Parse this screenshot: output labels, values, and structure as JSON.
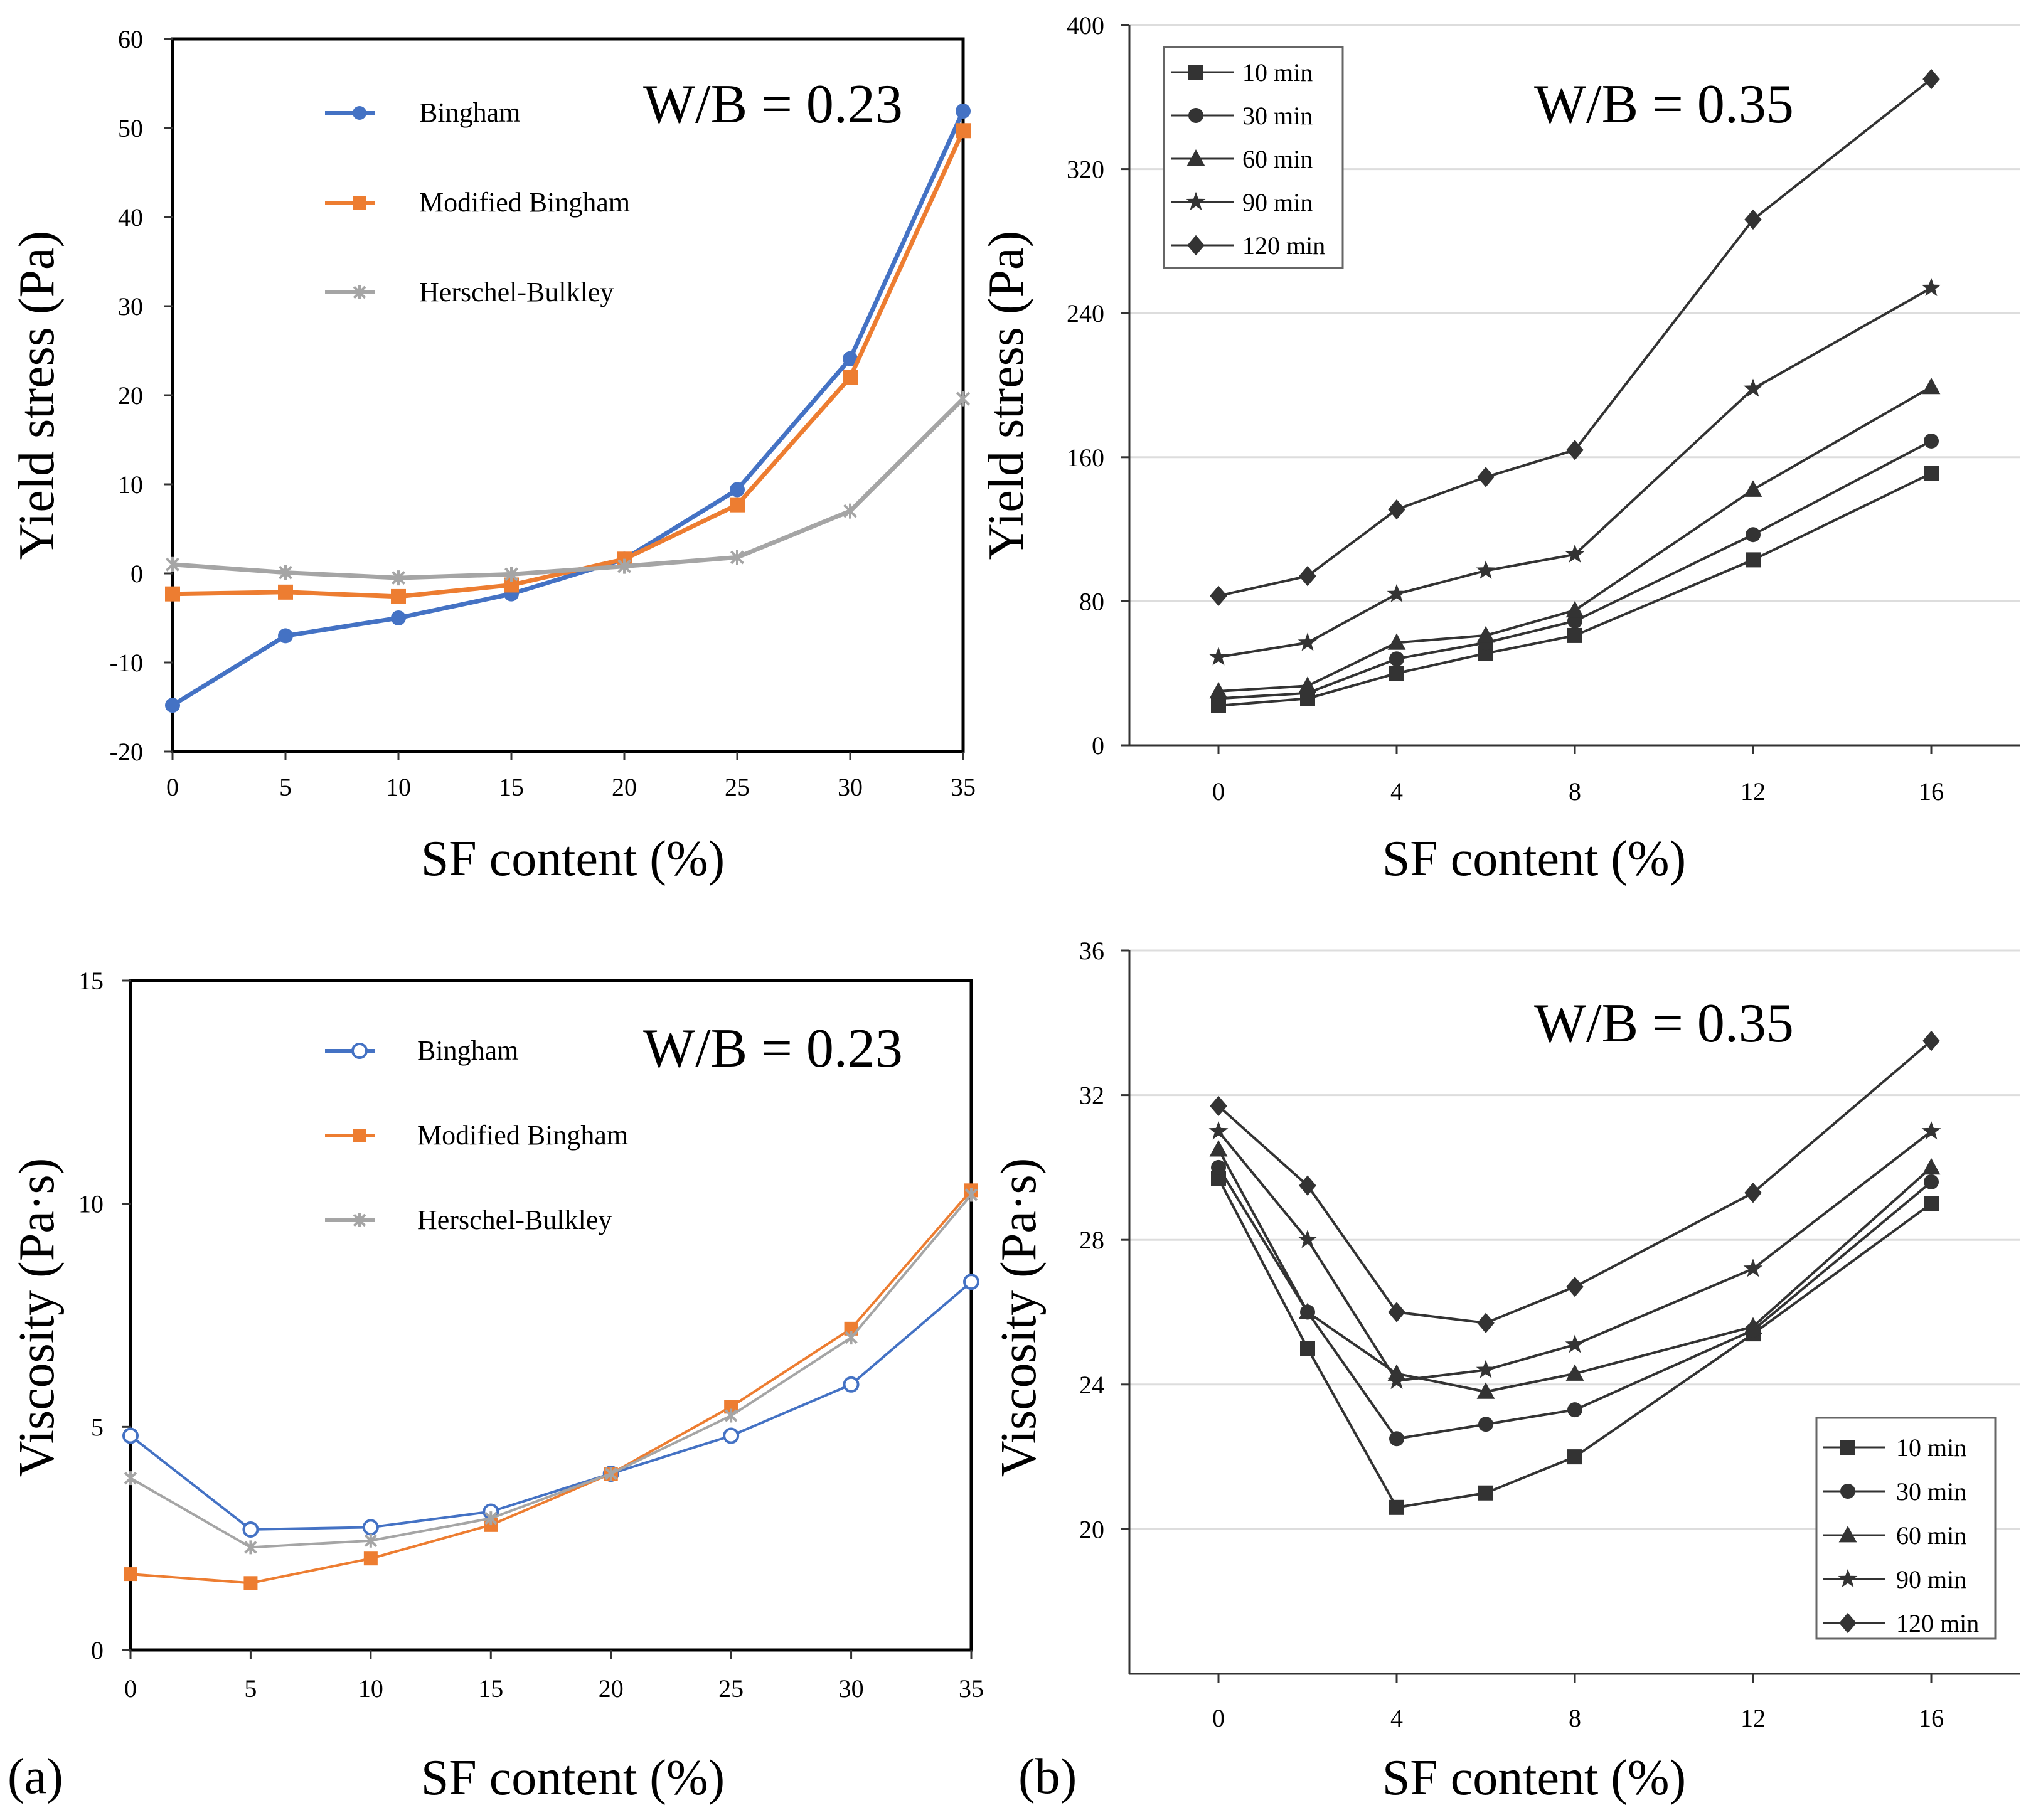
{
  "figure": {
    "panel_labels": [
      "(a)",
      "(b)"
    ]
  },
  "colors": {
    "Bingham": "#4472C4",
    "Modified Bingham": "#ED7D31",
    "Herschel-Bulkley": "#A5A5A5",
    "b_series": "#333333"
  },
  "chart_data": [
    {
      "id": "a_top",
      "type": "line",
      "ylabel": "Yield  stress (Pa)",
      "xlabel": "SF content (%)",
      "annotation": "W/B = 0.23",
      "x": [
        0,
        5,
        10,
        15,
        20,
        25,
        30,
        35
      ],
      "xticks": [
        "0",
        "5",
        "10",
        "15",
        "20",
        "25",
        "30",
        "35"
      ],
      "ylim": [
        -20,
        60
      ],
      "yticks": [
        "-20",
        "-10",
        "0",
        "10",
        "20",
        "30",
        "40",
        "50",
        "60"
      ],
      "ytick_values": [
        -20,
        -10,
        0,
        10,
        20,
        30,
        40,
        50,
        60
      ],
      "grid": false,
      "legend": "top-left",
      "series": [
        {
          "name": "Bingham",
          "marker": "circle",
          "values": [
            -14.8,
            -7,
            -5,
            -2.3,
            1.6,
            9.4,
            24.1,
            51.9
          ]
        },
        {
          "name": "Modified Bingham",
          "marker": "square",
          "values": [
            -2.3,
            -2.1,
            -2.6,
            -1.3,
            1.6,
            7.7,
            22,
            49.7
          ]
        },
        {
          "name": "Herschel-Bulkley",
          "marker": "x",
          "values": [
            1,
            0.1,
            -0.5,
            -0.1,
            0.8,
            1.8,
            7,
            19.6
          ]
        }
      ]
    },
    {
      "id": "b_top",
      "type": "line",
      "ylabel": "Yield  stress (Pa)",
      "xlabel": "SF content (%)",
      "annotation": "W/B = 0.35",
      "x": [
        0,
        2,
        4,
        6,
        8,
        12,
        16
      ],
      "xtick_values": [
        0,
        4,
        8,
        12,
        16
      ],
      "xticks": [
        "0",
        "4",
        "8",
        "12",
        "16"
      ],
      "xlim": [
        -2,
        18
      ],
      "ylim": [
        0,
        400
      ],
      "yticks": [
        "0",
        "80",
        "160",
        "240",
        "320",
        "400"
      ],
      "ytick_values": [
        0,
        80,
        160,
        240,
        320,
        400
      ],
      "grid": true,
      "legend": "top-left",
      "series": [
        {
          "name": "10 min",
          "marker": "square",
          "values": [
            22,
            26,
            40,
            51,
            61,
            103,
            151
          ]
        },
        {
          "name": "30 min",
          "marker": "circle",
          "values": [
            26,
            29,
            48,
            57,
            69,
            117,
            169
          ]
        },
        {
          "name": "60 min",
          "marker": "triangle",
          "values": [
            30,
            33,
            57,
            61,
            75,
            142,
            199
          ]
        },
        {
          "name": "90 min",
          "marker": "star",
          "values": [
            49,
            57,
            84,
            97,
            106,
            198,
            254
          ]
        },
        {
          "name": "120 min",
          "marker": "diamond",
          "values": [
            83,
            94,
            131,
            149,
            164,
            292,
            370
          ]
        }
      ]
    },
    {
      "id": "a_bottom",
      "type": "line",
      "ylabel": "Viscosity  (Pa·s)",
      "xlabel": "SF content (%)",
      "annotation": "W/B = 0.23",
      "x": [
        0,
        5,
        10,
        15,
        20,
        25,
        30,
        35
      ],
      "xticks": [
        "0",
        "5",
        "10",
        "15",
        "20",
        "25",
        "30",
        "35"
      ],
      "ylim": [
        0,
        15
      ],
      "yticks": [
        "0",
        "5",
        "10",
        "15"
      ],
      "ytick_values": [
        0,
        5,
        10,
        15
      ],
      "grid": false,
      "legend": "top-left",
      "series": [
        {
          "name": "Bingham",
          "marker": "open-circle",
          "values": [
            4.8,
            2.7,
            2.75,
            3.1,
            3.95,
            4.8,
            5.95,
            8.25
          ]
        },
        {
          "name": "Modified Bingham",
          "marker": "square",
          "values": [
            1.7,
            1.5,
            2.05,
            2.8,
            3.95,
            5.45,
            7.2,
            10.3
          ]
        },
        {
          "name": "Herschel-Bulkley",
          "marker": "x",
          "values": [
            3.85,
            2.3,
            2.45,
            2.95,
            3.95,
            5.25,
            7,
            10.2
          ]
        }
      ]
    },
    {
      "id": "b_bottom",
      "type": "line",
      "ylabel": "Viscosity  (Pa·s)",
      "xlabel": "SF content (%)",
      "annotation": "W/B = 0.35",
      "x": [
        0,
        2,
        4,
        6,
        8,
        12,
        16
      ],
      "xtick_values": [
        0,
        4,
        8,
        12,
        16
      ],
      "xticks": [
        "0",
        "4",
        "8",
        "12",
        "16"
      ],
      "xlim": [
        -2,
        18
      ],
      "ylim": [
        16,
        36
      ],
      "yticks": [
        "20",
        "24",
        "28",
        "32",
        "36"
      ],
      "ytick_values": [
        20,
        24,
        28,
        32,
        36
      ],
      "grid": true,
      "legend": "bottom-right",
      "series": [
        {
          "name": "10 min",
          "marker": "square",
          "values": [
            29.7,
            25,
            20.6,
            21,
            22,
            25.4,
            29
          ]
        },
        {
          "name": "30 min",
          "marker": "circle",
          "values": [
            30,
            26,
            22.5,
            22.9,
            23.3,
            25.5,
            29.6
          ]
        },
        {
          "name": "60 min",
          "marker": "triangle",
          "values": [
            30.5,
            26,
            24.3,
            23.8,
            24.3,
            25.6,
            30
          ]
        },
        {
          "name": "90 min",
          "marker": "star",
          "values": [
            31,
            28,
            24.1,
            24.4,
            25.1,
            27.2,
            31
          ]
        },
        {
          "name": "120 min",
          "marker": "diamond",
          "values": [
            31.7,
            29.5,
            26,
            25.7,
            26.7,
            29.3,
            33.5
          ]
        }
      ]
    }
  ]
}
